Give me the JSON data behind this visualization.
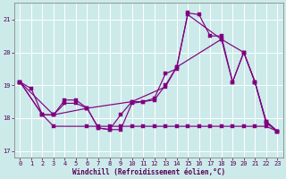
{
  "xlabel": "Windchill (Refroidissement éolien,°C)",
  "bg_color": "#cceaea",
  "line_color": "#800080",
  "xlim": [
    -0.5,
    23.5
  ],
  "ylim": [
    16.8,
    21.5
  ],
  "yticks": [
    17,
    18,
    19,
    20,
    21
  ],
  "xticks": [
    0,
    1,
    2,
    3,
    4,
    5,
    6,
    7,
    8,
    9,
    10,
    11,
    12,
    13,
    14,
    15,
    16,
    17,
    18,
    19,
    20,
    21,
    22,
    23
  ],
  "line1_x": [
    0,
    1,
    2,
    3,
    4,
    5,
    6,
    7,
    8,
    9,
    10,
    11,
    12,
    13,
    14,
    15,
    16,
    17,
    18,
    19,
    20,
    21,
    22,
    23
  ],
  "line1_y": [
    19.1,
    18.9,
    18.1,
    18.1,
    18.55,
    18.55,
    18.3,
    17.7,
    17.65,
    18.1,
    18.5,
    18.5,
    18.6,
    19.35,
    19.5,
    21.2,
    21.15,
    20.5,
    20.5,
    19.1,
    20.0,
    19.1,
    17.9,
    17.6
  ],
  "line2_x": [
    0,
    3,
    4,
    5,
    6,
    7,
    8,
    9,
    10,
    11,
    12,
    13,
    14,
    15,
    18,
    19,
    20,
    21,
    22,
    23
  ],
  "line2_y": [
    19.1,
    18.1,
    18.45,
    18.45,
    18.3,
    17.7,
    17.65,
    17.65,
    18.45,
    18.5,
    18.55,
    19.0,
    19.55,
    21.15,
    20.4,
    19.1,
    20.0,
    19.1,
    17.9,
    17.6
  ],
  "line3_x": [
    0,
    2,
    3,
    6,
    10,
    13,
    14,
    18,
    20,
    21,
    22,
    23
  ],
  "line3_y": [
    19.1,
    18.1,
    18.1,
    18.3,
    18.5,
    18.95,
    19.55,
    20.4,
    20.0,
    19.1,
    17.85,
    17.6
  ],
  "line4_x": [
    0,
    2,
    3,
    6,
    7,
    8,
    9,
    10,
    11,
    12,
    13,
    14,
    15,
    16,
    17,
    18,
    19,
    20,
    21,
    22,
    23
  ],
  "line4_y": [
    19.1,
    18.1,
    17.75,
    17.75,
    17.75,
    17.75,
    17.75,
    17.75,
    17.75,
    17.75,
    17.75,
    17.75,
    17.75,
    17.75,
    17.75,
    17.75,
    17.75,
    17.75,
    17.75,
    17.75,
    17.6
  ]
}
